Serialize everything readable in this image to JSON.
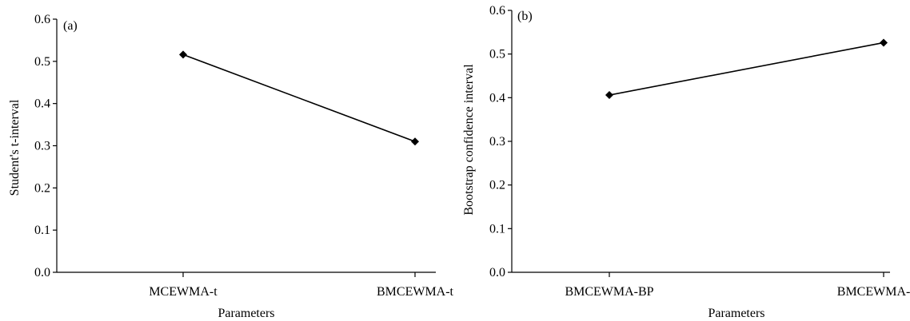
{
  "chart_data": [
    {
      "type": "line",
      "panel_label": "(a)",
      "categories": [
        "MCEWMA-t",
        "BMCEWMA-t"
      ],
      "values": [
        0.516,
        0.31
      ],
      "xlabel": "Parameters",
      "ylabel": "Student's t-interval",
      "ylim": [
        0,
        0.6
      ],
      "yticks": [
        "0.0",
        "0.1",
        "0.2",
        "0.3",
        "0.4",
        "0.5",
        "0.6"
      ],
      "marker": "diamond",
      "grid": false
    },
    {
      "type": "line",
      "panel_label": "(b)",
      "categories": [
        "BMCEWMA-BP",
        "BMCEWMA-Bca"
      ],
      "values": [
        0.406,
        0.526
      ],
      "xlabel": "Parameters",
      "ylabel": "Bootstrap confidence interval",
      "ylim": [
        0,
        0.6
      ],
      "yticks": [
        "0.0",
        "0.1",
        "0.2",
        "0.3",
        "0.4",
        "0.5",
        "0.6"
      ],
      "marker": "diamond",
      "grid": false
    }
  ]
}
